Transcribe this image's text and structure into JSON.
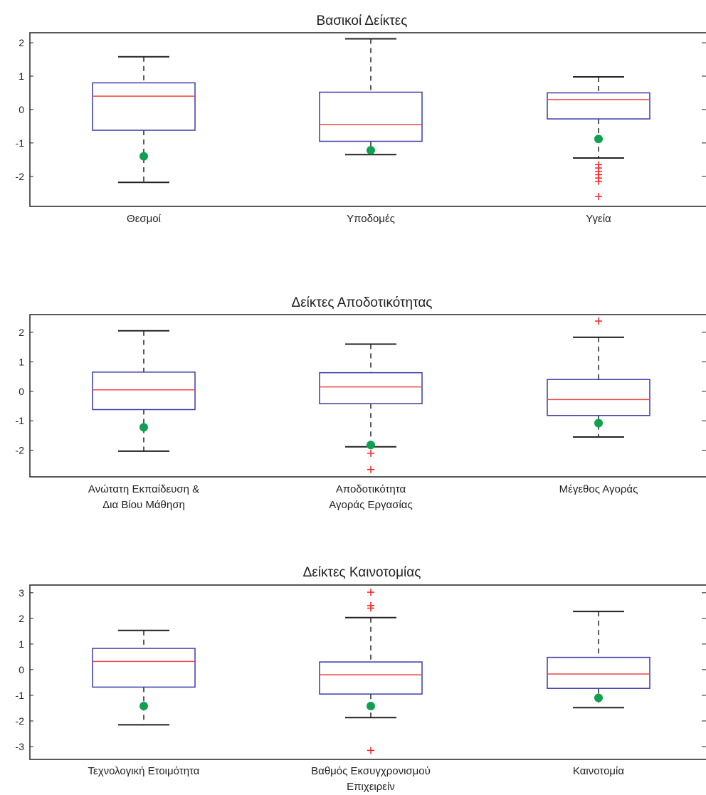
{
  "chart_data": [
    {
      "type": "box",
      "title": "Βασικοί Δείκτες",
      "ylim": [
        -2.9,
        2.3
      ],
      "yticks": [
        "2",
        "1",
        "0",
        "-1",
        "-2"
      ],
      "yticks_values": [
        2,
        1,
        0,
        -1,
        -2
      ],
      "categories": [
        [
          "Θεσμοί"
        ],
        [
          "Υποδομές"
        ],
        [
          "Υγεία"
        ]
      ],
      "boxes": [
        {
          "lower_whisker": -2.18,
          "q1": -0.62,
          "median": 0.4,
          "q3": 0.8,
          "upper_whisker": 1.58,
          "outliers": [],
          "point": -1.4
        },
        {
          "lower_whisker": -1.35,
          "q1": -0.95,
          "median": -0.45,
          "q3": 0.52,
          "upper_whisker": 2.12,
          "outliers": [],
          "point": -1.22
        },
        {
          "lower_whisker": -1.45,
          "q1": -0.28,
          "median": 0.3,
          "q3": 0.5,
          "upper_whisker": 0.98,
          "outliers": [
            -1.65,
            -1.75,
            -1.85,
            -1.95,
            -2.05,
            -2.15,
            -2.6
          ],
          "point": -0.88
        }
      ]
    },
    {
      "type": "box",
      "title": "Δείκτες Αποδοτικότητας",
      "ylim": [
        -2.9,
        2.6
      ],
      "yticks": [
        "2",
        "1",
        "0",
        "-1",
        "-2"
      ],
      "yticks_values": [
        2,
        1,
        0,
        -1,
        -2
      ],
      "categories": [
        [
          "Ανώτατη Εκπαίδευση &",
          "Δια Βίου Μάθηση"
        ],
        [
          "Αποδοτικότητα",
          "Αγοράς Εργασίας"
        ],
        [
          "Μέγεθος Αγοράς"
        ]
      ],
      "boxes": [
        {
          "lower_whisker": -2.03,
          "q1": -0.62,
          "median": 0.05,
          "q3": 0.65,
          "upper_whisker": 2.05,
          "outliers": [],
          "point": -1.22
        },
        {
          "lower_whisker": -1.88,
          "q1": -0.42,
          "median": 0.15,
          "q3": 0.63,
          "upper_whisker": 1.6,
          "outliers": [
            -2.1,
            -2.65
          ],
          "point": -1.82
        },
        {
          "lower_whisker": -1.55,
          "q1": -0.82,
          "median": -0.28,
          "q3": 0.4,
          "upper_whisker": 1.83,
          "outliers": [
            2.38
          ],
          "point": -1.08
        }
      ]
    },
    {
      "type": "box",
      "title": "Δείκτες Καινοτομίας",
      "ylim": [
        -3.5,
        3.3
      ],
      "yticks": [
        "3",
        "2",
        "1",
        "0",
        "-1",
        "-2",
        "-3"
      ],
      "yticks_values": [
        3,
        2,
        1,
        0,
        -1,
        -2,
        -3
      ],
      "categories": [
        [
          "Τεχνολογική Ετοιμότητα"
        ],
        [
          "Βαθμός Εκσυγχρονισμού",
          "Επιχειρείν"
        ],
        [
          "Καινοτομία"
        ]
      ],
      "boxes": [
        {
          "lower_whisker": -2.15,
          "q1": -0.68,
          "median": 0.32,
          "q3": 0.83,
          "upper_whisker": 1.53,
          "outliers": [],
          "point": -1.42
        },
        {
          "lower_whisker": -1.87,
          "q1": -0.95,
          "median": -0.2,
          "q3": 0.3,
          "upper_whisker": 2.03,
          "outliers": [
            3.02,
            2.5,
            2.4,
            -3.15
          ],
          "point": -1.42
        },
        {
          "lower_whisker": -1.48,
          "q1": -0.73,
          "median": -0.17,
          "q3": 0.48,
          "upper_whisker": 2.27,
          "outliers": [],
          "point": -1.1
        }
      ]
    }
  ],
  "colors": {
    "box": "#3a3aa8",
    "median": "#ee4444",
    "whisker": "#222222",
    "outlier": "#ff2020",
    "point": "#10a050",
    "axis": "#222222"
  }
}
